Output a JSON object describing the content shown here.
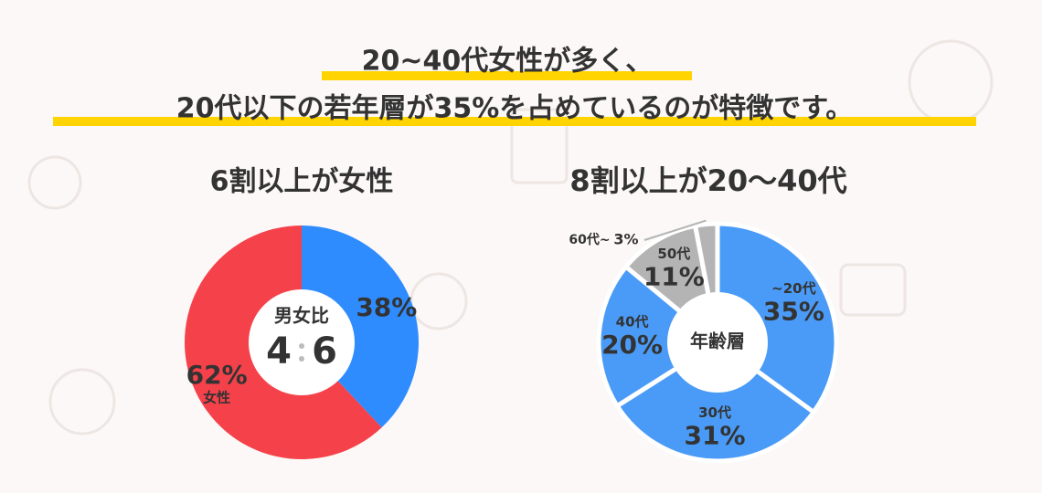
{
  "headline": [
    "20~40代女性が多く、",
    "20代以下の若年層が35%を占めているのが特徴です。"
  ],
  "chart_data": [
    {
      "type": "pie",
      "title": "6割以上が女性",
      "center_title": "男女比",
      "center_ratio": [
        4,
        6
      ],
      "categories": [
        null,
        "女性"
      ],
      "values": [
        38,
        62
      ],
      "value_labels": [
        "38%",
        "62%"
      ],
      "colors": [
        "#2f8cff",
        "#f5414a"
      ]
    },
    {
      "type": "pie",
      "title": "8割以上が20〜40代",
      "center_title": "年齢層",
      "categories": [
        "~20代",
        "30代",
        "40代",
        "50代",
        "60代~"
      ],
      "values": [
        35,
        31,
        20,
        11,
        3
      ],
      "value_labels": [
        "35%",
        "31%",
        "20%",
        "11%",
        "3%"
      ],
      "colors": [
        "#4a9bf7",
        "#4a9bf7",
        "#4a9bf7",
        "#b4b4b4",
        "#b4b4b4"
      ]
    }
  ]
}
